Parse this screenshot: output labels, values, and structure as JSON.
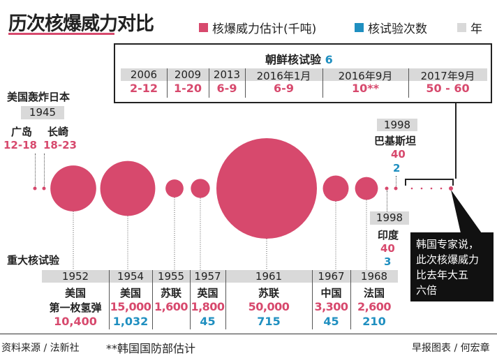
{
  "title": "历次核爆威力对比",
  "legend": [
    {
      "label": "核爆威力估计(千吨)",
      "color": "#d7496d"
    },
    {
      "label": "核试验次数",
      "color": "#1f8fc0"
    },
    {
      "label": "年",
      "color": "#d9d9d9"
    }
  ],
  "north_korea": {
    "title": "朝鲜核试验",
    "count": "6",
    "tests": [
      {
        "year": "2006",
        "yield": "2-12"
      },
      {
        "year": "2009",
        "yield": "1-20"
      },
      {
        "year": "2013",
        "yield": "6-9"
      },
      {
        "year": "2016年1月",
        "yield": "6-9"
      },
      {
        "year": "2016年9月",
        "yield": "10**"
      },
      {
        "year": "2017年9月",
        "yield": "50 - 60"
      }
    ]
  },
  "japan": {
    "title": "美国轰炸日本",
    "year": "1945",
    "cities": [
      {
        "name": "广岛",
        "yield": "12-18"
      },
      {
        "name": "长崎",
        "yield": "18-23"
      }
    ]
  },
  "pakistan": {
    "year": "1998",
    "country": "巴基斯坦",
    "yield": "40",
    "count": "2"
  },
  "india": {
    "year": "1998",
    "country": "印度",
    "yield": "40",
    "count": "3"
  },
  "callout": [
    "韩国专家说，",
    "此次核爆威力",
    "比去年大五",
    "六倍"
  ],
  "major_title": "重大核试验",
  "major": [
    {
      "year": "1952",
      "country": "美国",
      "note": "第一枚氢弹",
      "yield": "10,400",
      "count": ""
    },
    {
      "year": "1954",
      "country": "美国",
      "note": "",
      "yield": "15,000",
      "count": "1,032"
    },
    {
      "year": "1955",
      "country": "苏联",
      "note": "",
      "yield": "1,600",
      "count": ""
    },
    {
      "year": "1957",
      "country": "英国",
      "note": "",
      "yield": "1,800",
      "count": "45"
    },
    {
      "year": "1961",
      "country": "苏联",
      "note": "",
      "yield": "50,000",
      "count": "715"
    },
    {
      "year": "1967",
      "country": "中国",
      "note": "",
      "yield": "3,300",
      "count": "45"
    },
    {
      "year": "1968",
      "country": "法国",
      "note": "",
      "yield": "2,600",
      "count": "210"
    }
  ],
  "footer": {
    "source": "资料来源 / 法新社",
    "note": "**韩国国防部估计",
    "credit": "早报图表 / 何宏章"
  },
  "chart_data": {
    "type": "bubble",
    "unit": "千吨",
    "bubbles": [
      {
        "label": "1952 美国",
        "yield": 10400
      },
      {
        "label": "1954 美国",
        "yield": 15000
      },
      {
        "label": "1955 苏联",
        "yield": 1600
      },
      {
        "label": "1957 英国",
        "yield": 1800
      },
      {
        "label": "1961 苏联",
        "yield": 50000
      },
      {
        "label": "1967 中国",
        "yield": 3300
      },
      {
        "label": "1968 法国",
        "yield": 2600
      },
      {
        "label": "1998 印度",
        "yield": 40
      },
      {
        "label": "1998 巴基斯坦",
        "yield": 40
      },
      {
        "label": "广岛",
        "yield": 15
      },
      {
        "label": "长崎",
        "yield": 20
      }
    ],
    "color": "#d7496d"
  }
}
